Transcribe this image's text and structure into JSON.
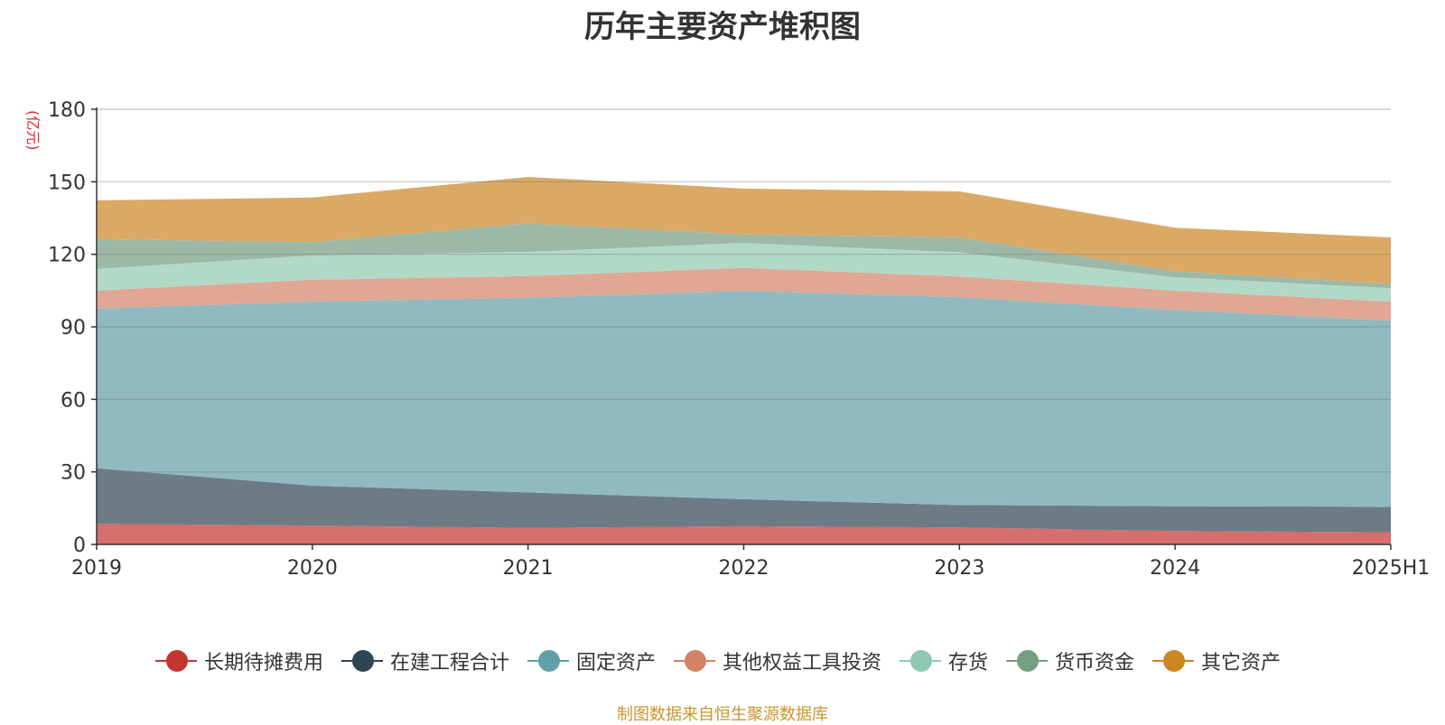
{
  "chart_data": {
    "type": "area",
    "stacked": true,
    "title": "历年主要资产堆积图",
    "unit_label": "(亿元)",
    "categories": [
      "2019",
      "2020",
      "2021",
      "2022",
      "2023",
      "2024",
      "2025H1"
    ],
    "ylim": [
      0,
      180
    ],
    "yticks": [
      0,
      30,
      60,
      90,
      120,
      150,
      180
    ],
    "grid": true,
    "legend_position": "bottom",
    "series": [
      {
        "name": "长期待摊费用",
        "color": "#c23531",
        "fill": "#d56e6c",
        "values": [
          8.5,
          7.8,
          6.8,
          7.5,
          7.0,
          5.5,
          5.0
        ]
      },
      {
        "name": "在建工程合计",
        "color": "#2f4554",
        "fill": "#6d7b86",
        "values": [
          23.0,
          16.5,
          14.7,
          11.2,
          9.3,
          10.3,
          10.6
        ]
      },
      {
        "name": "固定资产",
        "color": "#61a0a8",
        "fill": "#90bac0",
        "values": [
          66.0,
          76.2,
          80.5,
          86.2,
          86.0,
          81.2,
          77.0
        ]
      },
      {
        "name": "其他权益工具投资",
        "color": "#d48265",
        "fill": "#e0a795",
        "values": [
          7.5,
          9.0,
          9.0,
          9.5,
          8.5,
          8.0,
          7.8
        ]
      },
      {
        "name": "存货",
        "color": "#91c7ae",
        "fill": "#b2d9c7",
        "values": [
          9.0,
          10.0,
          10.0,
          10.3,
          10.0,
          5.5,
          5.6
        ]
      },
      {
        "name": "货币资金",
        "color": "#749f83",
        "fill": "#9db8a7",
        "values": [
          12.3,
          5.5,
          11.8,
          3.5,
          6.2,
          2.5,
          1.8
        ]
      },
      {
        "name": "其它资产",
        "color": "#ca8622",
        "fill": "#d9a965",
        "values": [
          16.0,
          18.5,
          19.2,
          19.0,
          19.0,
          18.0,
          19.2
        ]
      }
    ]
  },
  "source_note": "制图数据来自恒生聚源数据库"
}
